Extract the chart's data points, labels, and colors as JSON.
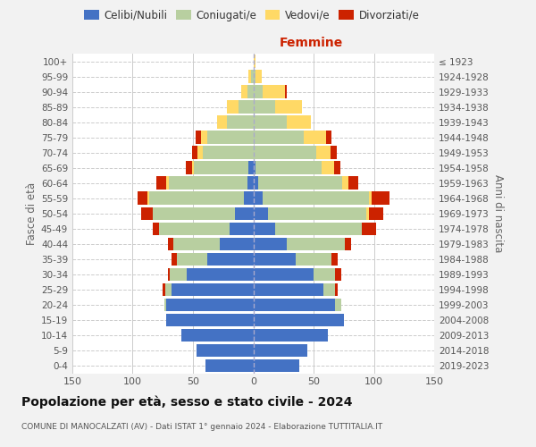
{
  "age_groups": [
    "0-4",
    "5-9",
    "10-14",
    "15-19",
    "20-24",
    "25-29",
    "30-34",
    "35-39",
    "40-44",
    "45-49",
    "50-54",
    "55-59",
    "60-64",
    "65-69",
    "70-74",
    "75-79",
    "80-84",
    "85-89",
    "90-94",
    "95-99",
    "100+"
  ],
  "birth_years": [
    "2019-2023",
    "2014-2018",
    "2009-2013",
    "2004-2008",
    "1999-2003",
    "1994-1998",
    "1989-1993",
    "1984-1988",
    "1979-1983",
    "1974-1978",
    "1969-1973",
    "1964-1968",
    "1959-1963",
    "1954-1958",
    "1949-1953",
    "1944-1948",
    "1939-1943",
    "1934-1938",
    "1929-1933",
    "1924-1928",
    "≤ 1923"
  ],
  "male": {
    "celibi": [
      40,
      47,
      60,
      72,
      72,
      68,
      55,
      38,
      28,
      20,
      15,
      8,
      5,
      4,
      0,
      0,
      0,
      0,
      0,
      0,
      0
    ],
    "coniugati": [
      0,
      0,
      0,
      0,
      2,
      5,
      14,
      25,
      38,
      58,
      68,
      78,
      65,
      45,
      42,
      38,
      22,
      12,
      5,
      2,
      0
    ],
    "vedovi": [
      0,
      0,
      0,
      0,
      0,
      0,
      0,
      0,
      0,
      0,
      0,
      2,
      2,
      2,
      4,
      5,
      8,
      10,
      5,
      2,
      0
    ],
    "divorziati": [
      0,
      0,
      0,
      0,
      0,
      2,
      2,
      5,
      5,
      5,
      10,
      8,
      8,
      5,
      5,
      5,
      0,
      0,
      0,
      0,
      0
    ]
  },
  "female": {
    "celibi": [
      38,
      45,
      62,
      75,
      68,
      58,
      50,
      35,
      28,
      18,
      12,
      8,
      4,
      2,
      0,
      0,
      0,
      0,
      0,
      0,
      0
    ],
    "coniugati": [
      0,
      0,
      0,
      0,
      5,
      10,
      18,
      30,
      48,
      72,
      82,
      88,
      70,
      55,
      52,
      42,
      28,
      18,
      8,
      2,
      0
    ],
    "vedovi": [
      0,
      0,
      0,
      0,
      0,
      0,
      0,
      0,
      0,
      0,
      2,
      2,
      5,
      10,
      12,
      18,
      20,
      22,
      18,
      5,
      2
    ],
    "divorziati": [
      0,
      0,
      0,
      0,
      0,
      2,
      5,
      5,
      5,
      12,
      12,
      15,
      8,
      5,
      5,
      5,
      0,
      0,
      2,
      0,
      0
    ]
  },
  "colors": {
    "celibi": "#4472c4",
    "coniugati": "#b8cfa0",
    "vedovi": "#ffd966",
    "divorziati": "#cc2200"
  },
  "legend_labels": [
    "Celibi/Nubili",
    "Coniugati/e",
    "Vedovi/e",
    "Divorziati/e"
  ],
  "title": "Popolazione per età, sesso e stato civile - 2024",
  "subtitle": "COMUNE DI MANOCALZATI (AV) - Dati ISTAT 1° gennaio 2024 - Elaborazione TUTTITALIA.IT",
  "xlabel_right": "Femmine",
  "ylabel_left": "Fasce di età",
  "ylabel_right": "Anni di nascita",
  "xlim": 150,
  "bg_color": "#f2f2f2",
  "plot_bg": "#ffffff",
  "grid_color": "#cccccc"
}
